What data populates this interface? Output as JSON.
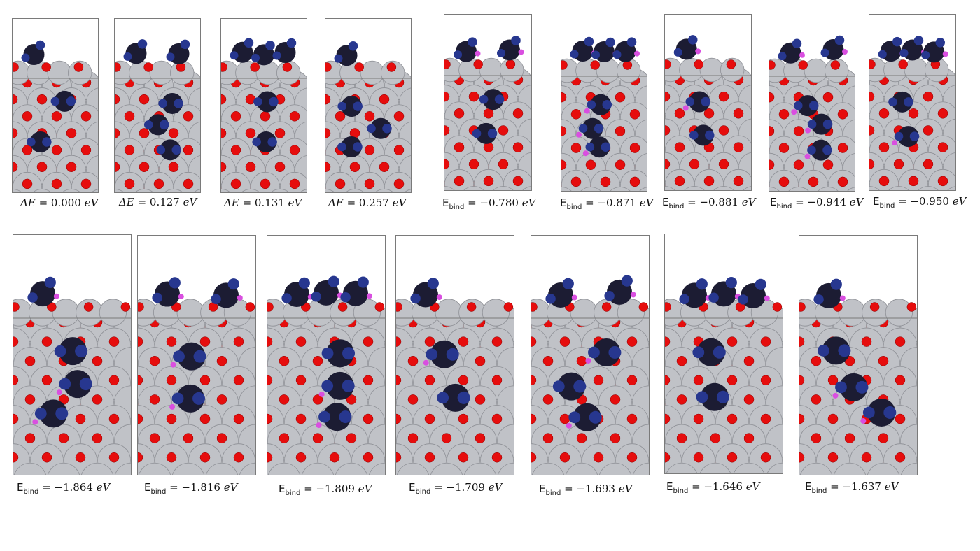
{
  "labels": {
    "delta": "ΔE",
    "ebind_main": "E",
    "ebind_sub": "bind",
    "unit": "eV"
  },
  "colors": {
    "metal_atom": "#c0c2c7",
    "oxygen_atom": "#e60d0d",
    "oxygen_back": "#f5a9a9",
    "carbon_atom": "#1c1c33",
    "nitrogen_atom": "#27378f",
    "hydrogen_atom": "#d94fe0",
    "panel_border": "#7a7a7a"
  },
  "panels": [
    {
      "kind": "delta",
      "value": "0.000"
    },
    {
      "kind": "delta",
      "value": "0.127"
    },
    {
      "kind": "delta",
      "value": "0.131"
    },
    {
      "kind": "delta",
      "value": "0.257"
    },
    {
      "kind": "ebind",
      "value": "−0.780"
    },
    {
      "kind": "ebind",
      "value": "−0.871"
    },
    {
      "kind": "ebind",
      "value": "−0.881"
    },
    {
      "kind": "ebind",
      "value": "−0.944"
    },
    {
      "kind": "ebind",
      "value": "−0.950"
    },
    {
      "kind": "ebind",
      "value": "−1.864"
    },
    {
      "kind": "ebind",
      "value": "−1.816"
    },
    {
      "kind": "ebind",
      "value": "−1.809"
    },
    {
      "kind": "ebind",
      "value": "−1.709"
    },
    {
      "kind": "ebind",
      "value": "−1.693"
    },
    {
      "kind": "ebind",
      "value": "−1.646"
    },
    {
      "kind": "ebind",
      "value": "−1.637"
    }
  ]
}
